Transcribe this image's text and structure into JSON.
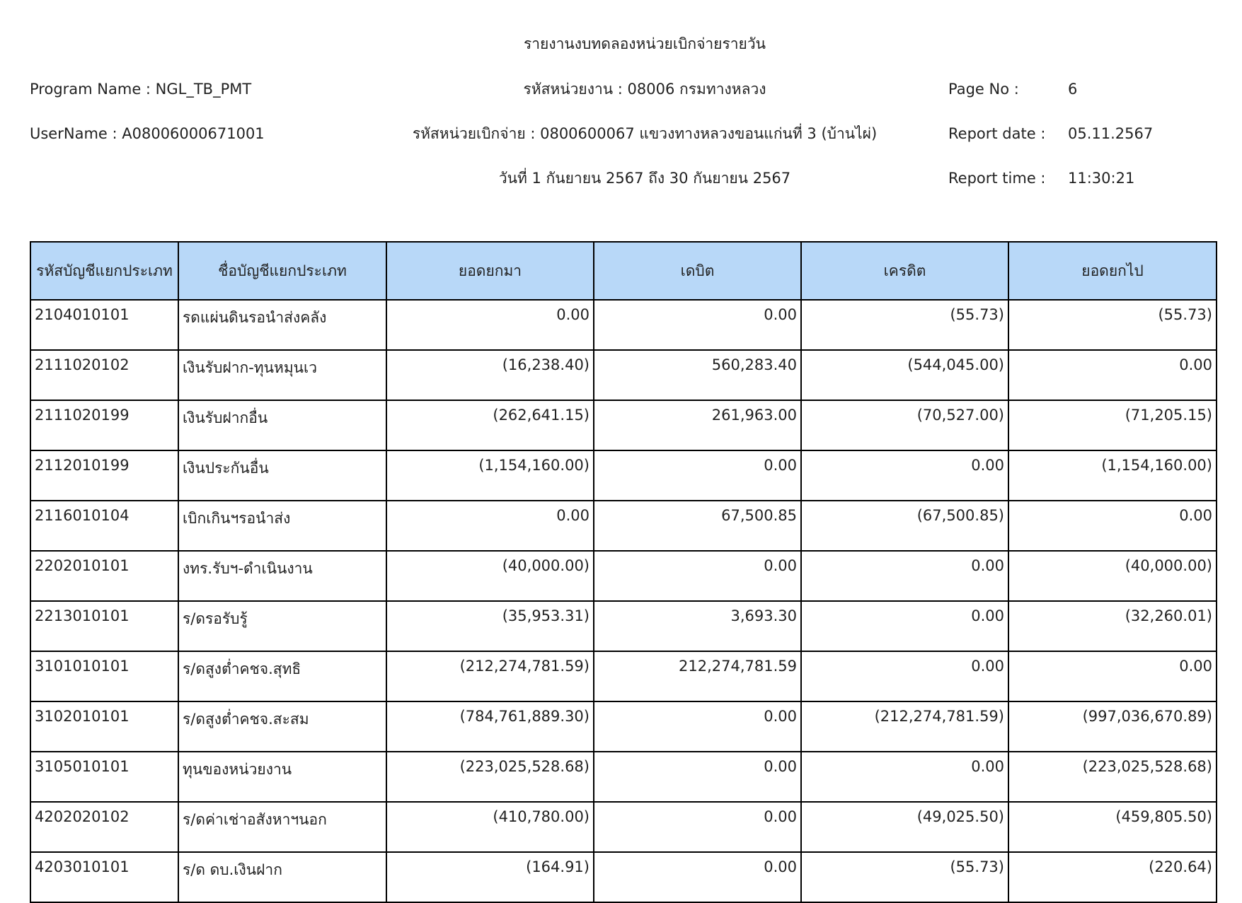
{
  "header": {
    "title": "รายงานงบทดลองหน่วยเบิกจ่ายรายวัน",
    "program_name": "Program Name : NGL_TB_PMT",
    "username": "UserName : A08006000671001",
    "agency": "รหัสหน่วยงาน : 08006 กรมทางหลวง",
    "disbursing_unit": "รหัสหน่วยเบิกจ่าย : 0800600067 แขวงทางหลวงขอนแก่นที่ 3 (บ้านไผ่)",
    "period": "วันที่ 1 กันยายน 2567 ถึง 30 กันยายน 2567",
    "page_no_label": "Page No :",
    "page_no": "6",
    "report_date_label": "Report date :",
    "report_date": "05.11.2567",
    "report_time_label": "Report time :",
    "report_time": "11:30:21"
  },
  "table": {
    "columns": [
      "รหัสบัญชีแยกประเภท",
      "ชื่อบัญชีแยกประเภท",
      "ยอดยกมา",
      "เดบิต",
      "เครดิต",
      "ยอดยกไป"
    ],
    "rows": [
      [
        "2104010101",
        "รดแผ่นดินรอนำส่งคลัง",
        "0.00",
        "0.00",
        "(55.73)",
        "(55.73)"
      ],
      [
        "2111020102",
        "เงินรับฝาก-ทุนหมุนเว",
        "(16,238.40)",
        "560,283.40",
        "(544,045.00)",
        "0.00"
      ],
      [
        "2111020199",
        "เงินรับฝากอื่น",
        "(262,641.15)",
        "261,963.00",
        "(70,527.00)",
        "(71,205.15)"
      ],
      [
        "2112010199",
        "เงินประกันอื่น",
        "(1,154,160.00)",
        "0.00",
        "0.00",
        "(1,154,160.00)"
      ],
      [
        "2116010104",
        "เบิกเกินฯรอนำส่ง",
        "0.00",
        "67,500.85",
        "(67,500.85)",
        "0.00"
      ],
      [
        "2202010101",
        "งทร.รับฯ-ดำเนินงาน",
        "(40,000.00)",
        "0.00",
        "0.00",
        "(40,000.00)"
      ],
      [
        "2213010101",
        "ร/ดรอรับรู้",
        "(35,953.31)",
        "3,693.30",
        "0.00",
        "(32,260.01)"
      ],
      [
        "3101010101",
        "ร/ดสูงต่ำคชจ.สุทธิ",
        "(212,274,781.59)",
        "212,274,781.59",
        "0.00",
        "0.00"
      ],
      [
        "3102010101",
        "ร/ดสูงต่ำคชจ.สะสม",
        "(784,761,889.30)",
        "0.00",
        "(212,274,781.59)",
        "(997,036,670.89)"
      ],
      [
        "3105010101",
        "ทุนของหน่วยงาน",
        "(223,025,528.68)",
        "0.00",
        "0.00",
        "(223,025,528.68)"
      ],
      [
        "4202020102",
        "ร/ดค่าเช่าอสังหาฯนอก",
        "(410,780.00)",
        "0.00",
        "(49,025.50)",
        "(459,805.50)"
      ],
      [
        "4203010101",
        "ร/ด ดบ.เงินฝาก",
        "(164.91)",
        "0.00",
        "(55.73)",
        "(220.64)"
      ]
    ]
  }
}
